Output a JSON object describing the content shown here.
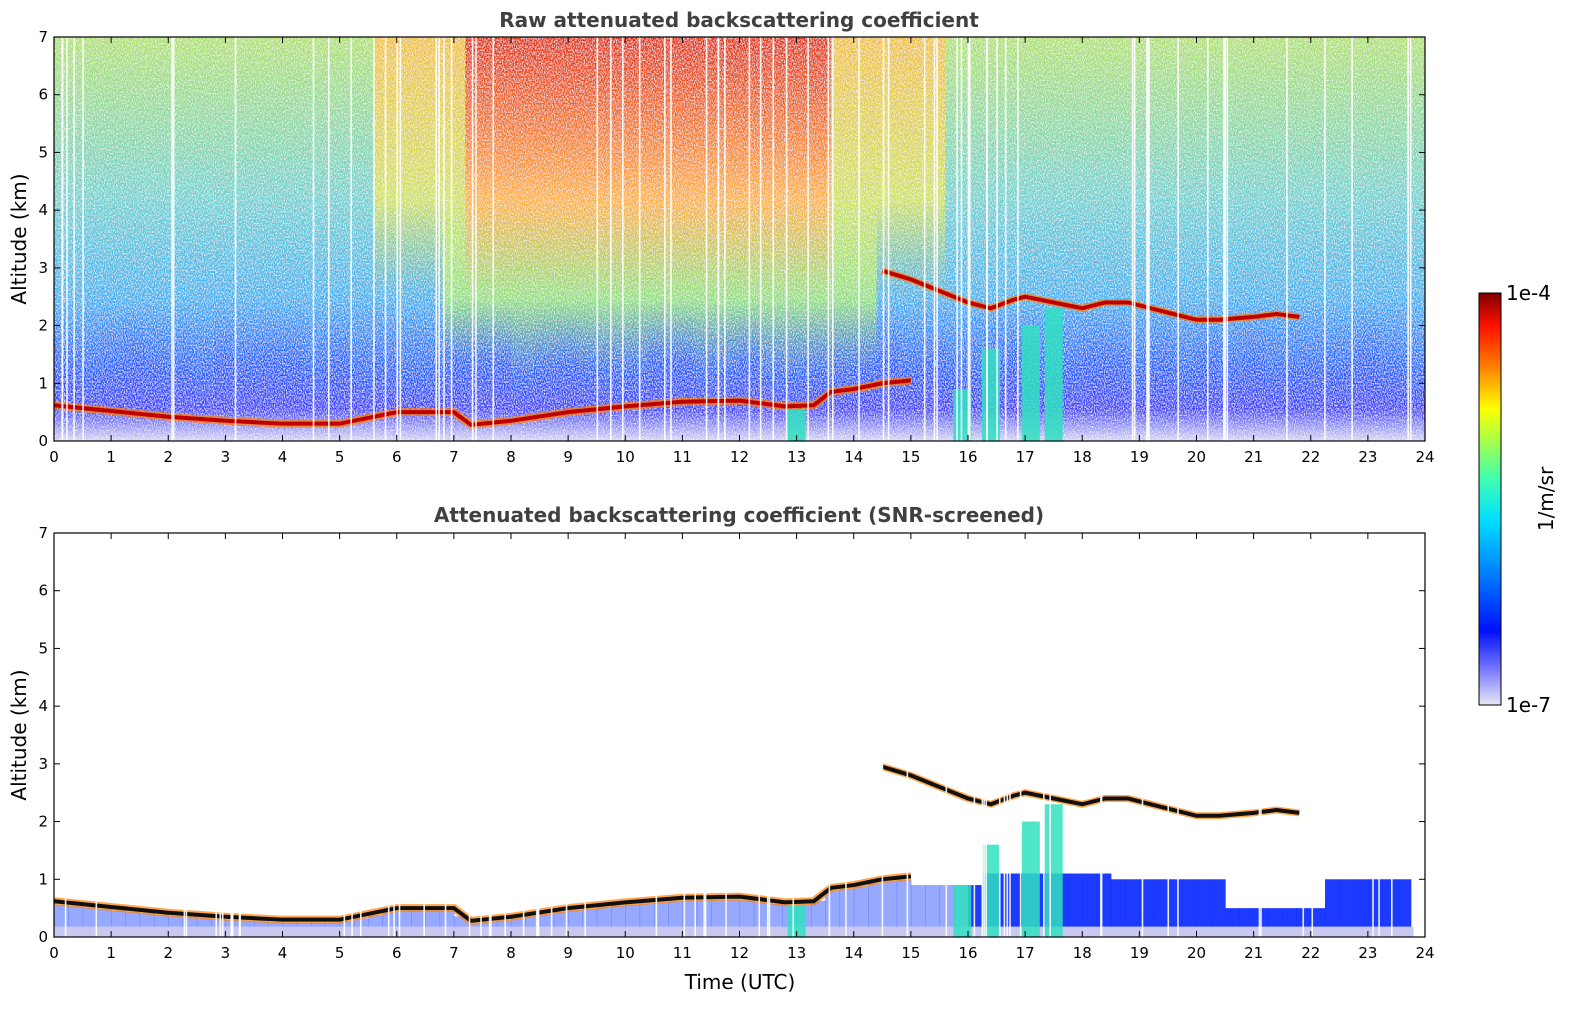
{
  "colors": {
    "red": "#c00000",
    "background": "#ffffff",
    "cloud_edge": "#000000"
  },
  "icons": [
    "colorbar"
  ],
  "chart_data": [
    {
      "type": "heatmap",
      "title": "Raw attenuated backscattering coefficient",
      "xlabel": "",
      "ylabel": "Altitude (km)",
      "xlim": [
        0,
        24
      ],
      "ylim": [
        0,
        7
      ],
      "xticks": [
        "0",
        "1",
        "2",
        "3",
        "4",
        "5",
        "6",
        "7",
        "8",
        "9",
        "10",
        "11",
        "12",
        "13",
        "14",
        "15",
        "16",
        "17",
        "18",
        "19",
        "20",
        "21",
        "22",
        "23",
        "24"
      ],
      "yticks": [
        "0",
        "1",
        "2",
        "3",
        "4",
        "5",
        "6",
        "7"
      ],
      "screened": false,
      "layer_top": [
        [
          0,
          0.62
        ],
        [
          1,
          0.52
        ],
        [
          2,
          0.42
        ],
        [
          3,
          0.35
        ],
        [
          4,
          0.3
        ],
        [
          5,
          0.3
        ],
        [
          6,
          0.5
        ],
        [
          7,
          0.5
        ],
        [
          7.3,
          0.28
        ],
        [
          8,
          0.35
        ],
        [
          9,
          0.5
        ],
        [
          10,
          0.6
        ],
        [
          11,
          0.68
        ],
        [
          12,
          0.7
        ],
        [
          12.8,
          0.6
        ],
        [
          13.3,
          0.62
        ],
        [
          13.6,
          0.85
        ],
        [
          14,
          0.9
        ],
        [
          14.5,
          1.0
        ],
        [
          15,
          1.05
        ]
      ],
      "cirrus": [
        [
          14.5,
          2.95
        ],
        [
          15,
          2.8
        ],
        [
          15.5,
          2.6
        ],
        [
          16,
          2.4
        ],
        [
          16.4,
          2.3
        ],
        [
          16.8,
          2.45
        ],
        [
          17,
          2.5
        ],
        [
          17.5,
          2.4
        ],
        [
          18,
          2.3
        ],
        [
          18.4,
          2.4
        ],
        [
          18.8,
          2.4
        ],
        [
          19.2,
          2.3
        ],
        [
          19.6,
          2.2
        ],
        [
          20,
          2.1
        ],
        [
          20.4,
          2.1
        ],
        [
          21,
          2.15
        ],
        [
          21.4,
          2.2
        ],
        [
          21.8,
          2.15
        ]
      ],
      "precip": [
        [
          13,
          0,
          0.55
        ],
        [
          15.9,
          0,
          0.9
        ],
        [
          16.4,
          0,
          1.6
        ],
        [
          17.5,
          0,
          2.3
        ],
        [
          17.1,
          0,
          2.0
        ]
      ]
    },
    {
      "type": "heatmap",
      "title": "Attenuated backscattering coefficient (SNR-screened)",
      "xlabel": "Time (UTC)",
      "ylabel": "Altitude (km)",
      "xlim": [
        0,
        24
      ],
      "ylim": [
        0,
        7
      ],
      "xticks": [
        "0",
        "1",
        "2",
        "3",
        "4",
        "5",
        "6",
        "7",
        "8",
        "9",
        "10",
        "11",
        "12",
        "13",
        "14",
        "15",
        "16",
        "17",
        "18",
        "19",
        "20",
        "21",
        "22",
        "23",
        "24"
      ],
      "yticks": [
        "0",
        "1",
        "2",
        "3",
        "4",
        "5",
        "6",
        "7"
      ],
      "screened": true
    }
  ],
  "colorbar": {
    "label": "1/m/sr",
    "max_label": "1e-4",
    "min_label": "1e-7",
    "range": [
      1e-07,
      0.0001
    ],
    "scale": "log"
  }
}
